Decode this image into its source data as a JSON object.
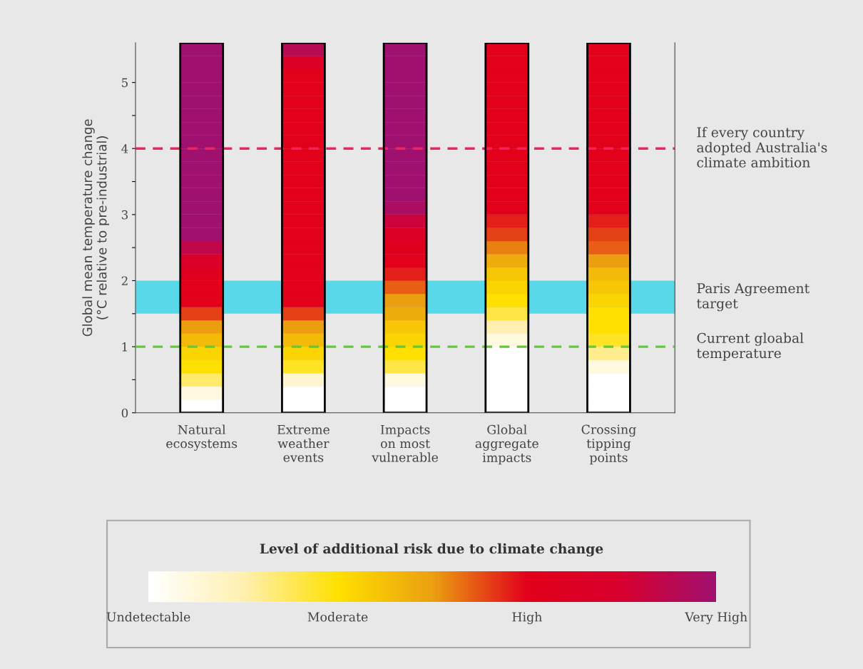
{
  "chart_data": {
    "type": "heatmap",
    "ylabel": "Global mean temperature change\n(°C relative to pre-industrial)",
    "clabel": "Level of additional risk due to climate change",
    "categories": [
      "Natural\necosystems",
      "Extreme\nweather\nevents",
      "Impacts\non most\nvulnerable",
      "Global\naggregate\nimpacts",
      "Crossing\ntipping\npoints"
    ],
    "cells": [
      [
        3,
        2.8,
        3,
        2,
        2
      ],
      [
        3,
        2.3,
        3,
        2,
        2
      ],
      [
        3,
        2,
        3,
        2,
        2
      ],
      [
        3,
        2,
        3,
        2,
        2
      ],
      [
        3,
        2,
        3,
        2,
        2
      ],
      [
        3,
        2,
        3,
        2,
        2
      ],
      [
        3,
        2,
        3,
        2,
        2
      ],
      [
        3,
        2,
        3,
        2,
        2
      ],
      [
        3,
        2,
        3,
        2,
        2
      ],
      [
        3,
        2,
        3,
        2,
        2
      ],
      [
        3,
        2,
        3,
        2,
        2
      ],
      [
        3,
        2,
        3,
        2,
        2
      ],
      [
        3,
        2,
        2.9,
        2,
        2
      ],
      [
        3,
        2,
        2.6,
        1.9,
        1.9
      ],
      [
        3,
        2,
        2.3,
        1.8,
        1.8
      ],
      [
        2.7,
        2,
        2.1,
        1.6,
        1.7
      ],
      [
        2.4,
        2,
        2,
        1.4,
        1.5
      ],
      [
        2.1,
        2,
        1.9,
        1.2,
        1.3
      ],
      [
        2,
        2,
        1.7,
        1.1,
        1.2
      ],
      [
        2,
        2,
        1.5,
        1,
        1.1
      ],
      [
        1.8,
        1.8,
        1.4,
        0.8,
        1
      ],
      [
        1.5,
        1.5,
        1.2,
        0.5,
        1
      ],
      [
        1.3,
        1.3,
        1.1,
        0.2,
        0.9
      ],
      [
        1.1,
        1.1,
        1,
        0,
        0.6
      ],
      [
        1,
        0.9,
        0.8,
        0,
        0.2
      ],
      [
        0.7,
        0.3,
        0.2,
        0,
        0
      ],
      [
        0.2,
        0,
        0,
        0,
        0
      ],
      [
        0,
        0,
        0,
        0,
        0
      ]
    ],
    "colors": [
      "#ffffff",
      "#fff0b0",
      "#ffe000",
      "#eba010",
      "#e2001a",
      "#d8002e",
      "#a0106f"
    ],
    "clim": [
      0,
      3
    ],
    "cticks": [
      {
        "value": 0,
        "label": "Undetectable"
      },
      {
        "value": 1,
        "label": "Moderate"
      },
      {
        "value": 2,
        "label": "High"
      },
      {
        "value": 3,
        "label": "Very High"
      }
    ],
    "ylim": [
      0,
      5.6
    ],
    "yticks": [
      0,
      {
        "value": 0.5,
        "label": null
      },
      1,
      {
        "value": 1.5,
        "label": null
      },
      2,
      {
        "value": 2.5,
        "label": null
      },
      3,
      {
        "value": 3.5,
        "label": null
      },
      4,
      {
        "value": 4.5,
        "label": null
      },
      5
    ],
    "ref_lines": [
      {
        "axis": "y",
        "value": 4,
        "label": "If every country\nadopted Australia's\nclimate ambition",
        "color": "#f0245c",
        "line_style": "dashed"
      },
      {
        "axis": "y",
        "value": 1,
        "label": "Current gloabal\ntemperature",
        "color": "#62c83c",
        "line_style": "dashed"
      }
    ],
    "bands": [
      {
        "axis": "y",
        "from": 1.5,
        "to": 2,
        "label": "Paris Agreement\ntarget",
        "color": "#3fd5ea"
      }
    ],
    "grid": false
  }
}
